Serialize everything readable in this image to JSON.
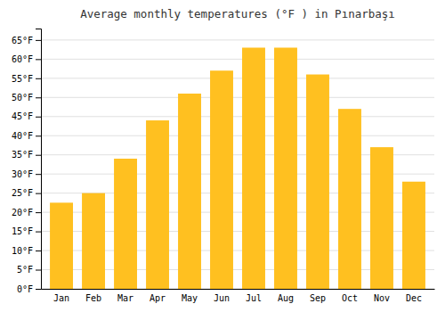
{
  "chart_data": {
    "type": "bar",
    "title": "Average monthly temperatures (°F ) in Pınarbaşı",
    "categories": [
      "Jan",
      "Feb",
      "Mar",
      "Apr",
      "May",
      "Jun",
      "Jul",
      "Aug",
      "Sep",
      "Oct",
      "Nov",
      "Dec"
    ],
    "values": [
      22.5,
      25.0,
      34.0,
      44.0,
      51.0,
      57.0,
      63.0,
      63.0,
      56.0,
      47.0,
      37.0,
      28.0
    ],
    "color": "#FFC020",
    "ylim": [
      0,
      68
    ],
    "yticks": [
      {
        "value": 0,
        "label": "0°F"
      },
      {
        "value": 5,
        "label": "5°F"
      },
      {
        "value": 10,
        "label": "10°F"
      },
      {
        "value": 15,
        "label": "15°F"
      },
      {
        "value": 20,
        "label": "20°F"
      },
      {
        "value": 25,
        "label": "25°F"
      },
      {
        "value": 30,
        "label": "30°F"
      },
      {
        "value": 35,
        "label": "35°F"
      },
      {
        "value": 40,
        "label": "40°F"
      },
      {
        "value": 45,
        "label": "45°F"
      },
      {
        "value": 50,
        "label": "50°F"
      },
      {
        "value": 55,
        "label": "55°F"
      },
      {
        "value": 60,
        "label": "60°F"
      },
      {
        "value": 65,
        "label": "65°F"
      }
    ],
    "grid": true
  }
}
